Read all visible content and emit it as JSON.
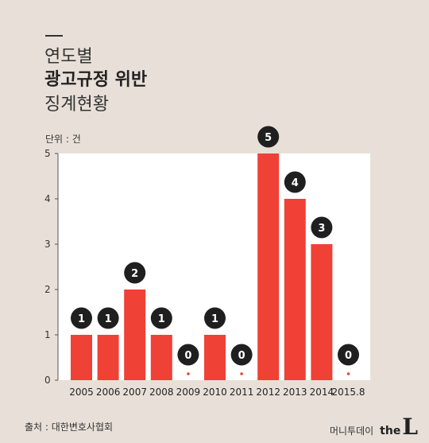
{
  "header": {
    "line1": "연도별",
    "line2": "광고규정 위반",
    "line3": "징계현황"
  },
  "unit_label": "단위 : 건",
  "footer": {
    "source": "출처 : 대한변호사협회",
    "brand_name": "머니투데이",
    "brand_the": "the",
    "brand_l": "L"
  },
  "colors": {
    "bar": "#ef4136",
    "label_bubble": "#1f1f1f",
    "plot_bg": "#ffffff",
    "page_bg": "#e8e0d8"
  },
  "chart_data": {
    "type": "bar",
    "categories": [
      "2005",
      "2006",
      "2007",
      "2008",
      "2009",
      "2010",
      "2011",
      "2012",
      "2013",
      "2014",
      "2015.8"
    ],
    "values": [
      1,
      1,
      2,
      1,
      0,
      1,
      0,
      5,
      4,
      3,
      0
    ],
    "yticks": [
      "0",
      "1",
      "2",
      "3",
      "4",
      "5"
    ],
    "ylim": [
      0,
      5
    ],
    "title": "연도별 광고규정 위반 징계현황",
    "xlabel": "",
    "ylabel": "단위 : 건",
    "grid": false,
    "data_labels": true
  }
}
